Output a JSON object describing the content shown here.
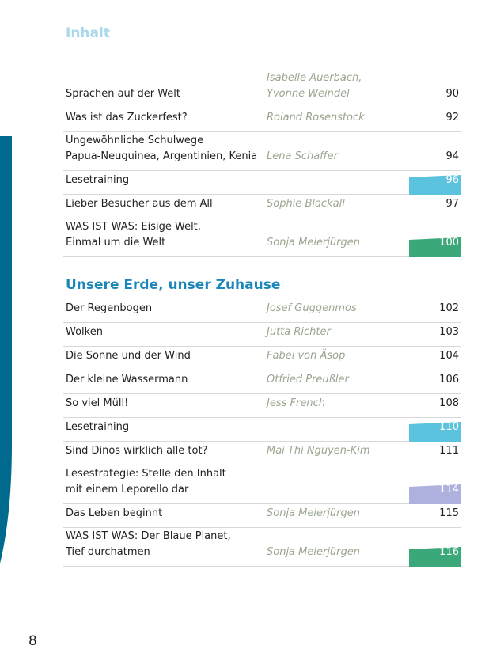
{
  "page_number": "8",
  "colors": {
    "band": "#006a8e",
    "cyan": "#5bc3de",
    "green": "#3aa878",
    "lavender": "#aeb1dd",
    "section2": "#1a86b9",
    "section1": "#a9d8ea"
  },
  "sections": [
    {
      "title": "Inhalt",
      "entries": [
        {
          "title": [
            "Sprachen auf der Welt"
          ],
          "author": [
            "Isabelle Auerbach,",
            "Yvonne Weindel"
          ],
          "page": "90",
          "tag": ""
        },
        {
          "title": [
            "Was ist das Zuckerfest?"
          ],
          "author": [
            "Roland Rosenstock"
          ],
          "page": "92",
          "tag": ""
        },
        {
          "title": [
            "Ungewöhnliche Schulwege",
            "Papua-Neuguinea, Argentinien, Kenia"
          ],
          "author": [
            "Lena Schaffer"
          ],
          "page": "94",
          "tag": ""
        },
        {
          "title": [
            "Lesetraining"
          ],
          "author": [],
          "page": "96",
          "tag": "cyan"
        },
        {
          "title": [
            "Lieber Besucher aus dem All"
          ],
          "author": [
            "Sophie Blackall"
          ],
          "page": "97",
          "tag": ""
        },
        {
          "title": [
            "WAS IST WAS: Eisige Welt,",
            "Einmal um die Welt"
          ],
          "author": [
            "Sonja Meierjürgen"
          ],
          "page": "100",
          "tag": "green"
        }
      ]
    },
    {
      "title": "Unsere Erde, unser Zuhause",
      "entries": [
        {
          "title": [
            "Der Regenbogen"
          ],
          "author": [
            "Josef Guggenmos"
          ],
          "page": "102",
          "tag": ""
        },
        {
          "title": [
            "Wolken"
          ],
          "author": [
            "Jutta Richter"
          ],
          "page": "103",
          "tag": ""
        },
        {
          "title": [
            "Die Sonne und der Wind"
          ],
          "author": [
            "Fabel von Äsop"
          ],
          "page": "104",
          "tag": ""
        },
        {
          "title": [
            "Der kleine Wassermann"
          ],
          "author": [
            "Otfried Preußler"
          ],
          "page": "106",
          "tag": ""
        },
        {
          "title": [
            "So viel Müll!"
          ],
          "author": [
            "Jess French"
          ],
          "page": "108",
          "tag": ""
        },
        {
          "title": [
            "Lesetraining"
          ],
          "author": [],
          "page": "110",
          "tag": "cyan"
        },
        {
          "title": [
            "Sind Dinos wirklich alle tot?"
          ],
          "author": [
            "Mai Thi Nguyen-Kim"
          ],
          "page": "111",
          "tag": ""
        },
        {
          "title": [
            "Lesestrategie: Stelle den Inhalt",
            "mit einem Leporello dar"
          ],
          "author": [],
          "page": "114",
          "tag": "lavender"
        },
        {
          "title": [
            "Das Leben beginnt"
          ],
          "author": [
            "Sonja Meierjürgen"
          ],
          "page": "115",
          "tag": ""
        },
        {
          "title": [
            "WAS IST WAS: Der Blaue Planet,",
            "Tief durchatmen"
          ],
          "author": [
            "Sonja Meierjürgen"
          ],
          "page": "116",
          "tag": "green"
        }
      ]
    }
  ]
}
